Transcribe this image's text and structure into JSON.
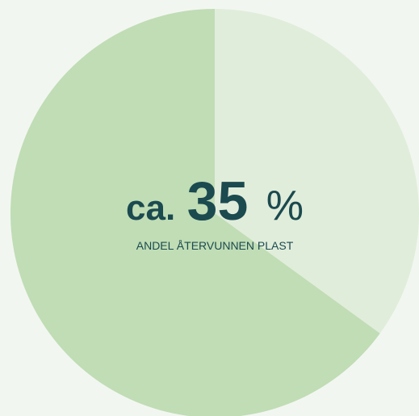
{
  "chart_data": {
    "type": "pie",
    "values": [
      35,
      65
    ],
    "colors": [
      "#e1eddb",
      "#c0ddb5"
    ],
    "center_label": {
      "prefix": "ca.",
      "suffix": "%",
      "caption": "ANDEL ÅTERVUNNEN PLAST"
    }
  }
}
